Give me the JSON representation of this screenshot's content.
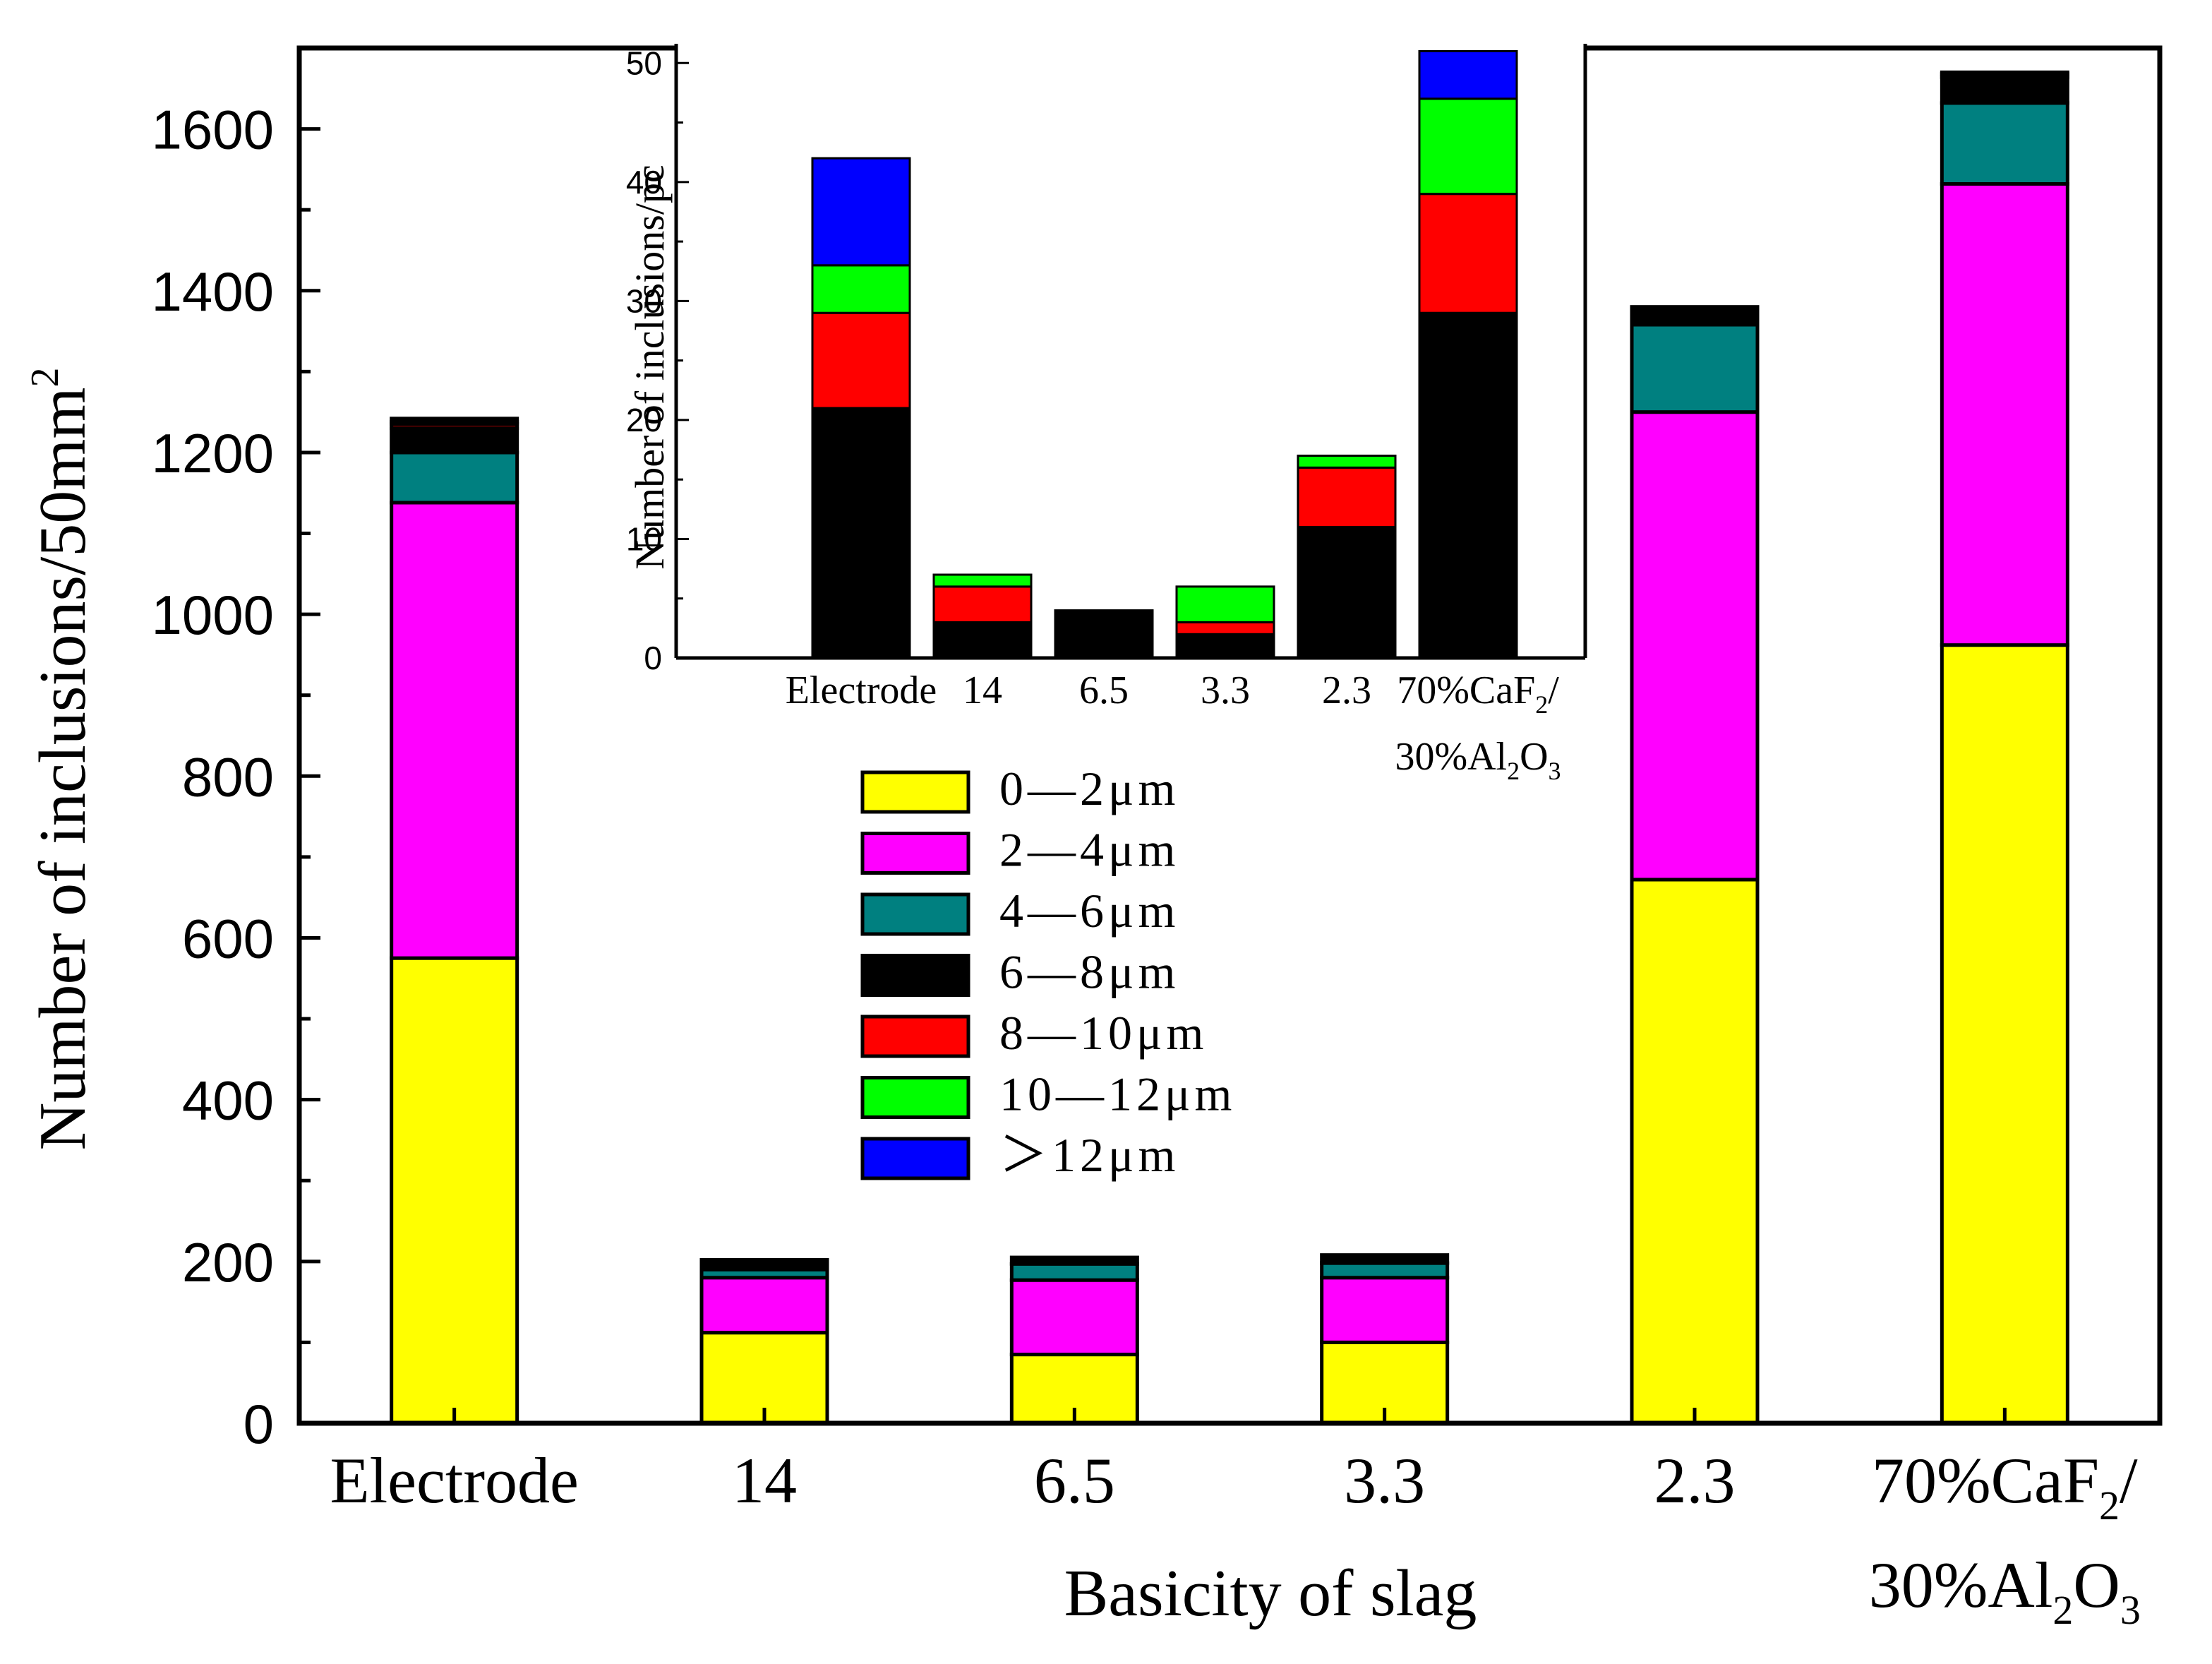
{
  "chart_data": [
    {
      "type": "bar",
      "stacked": true,
      "title": "",
      "xlabel": "Basicity of slag",
      "ylabel": "Number of inclusions/50mm",
      "ylabel_superscript": "2",
      "ylim": [
        0,
        1700
      ],
      "yticks": [
        "0",
        "200",
        "400",
        "600",
        "800",
        "1000",
        "1200",
        "1400",
        "1600"
      ],
      "categories": [
        {
          "label": "Electrode"
        },
        {
          "label": "14"
        },
        {
          "label": "6.5"
        },
        {
          "label": "3.3"
        },
        {
          "label": "2.3"
        },
        {
          "line1_a": "70%CaF",
          "line1_sub": "2",
          "line1_b": "/",
          "line2_a": "30%Al",
          "line2_sub1": "2",
          "line2_b": "O",
          "line2_sub2": "3"
        }
      ],
      "series": [
        {
          "name": "0—2μm",
          "color": "#ffff00",
          "values": [
            575,
            112,
            85,
            100,
            672,
            962
          ]
        },
        {
          "name": "2—4μm",
          "color": "#ff00ff",
          "values": [
            563,
            68,
            92,
            80,
            578,
            570
          ]
        },
        {
          "name": "4—6μm",
          "color": "#008080",
          "values": [
            62,
            10,
            20,
            18,
            108,
            100
          ]
        },
        {
          "name": "6—8μm",
          "color": "#000000",
          "values": [
            30,
            12,
            8,
            10,
            22,
            32
          ]
        },
        {
          "name": "8—10μm",
          "color": "#ff0000",
          "values": [
            5,
            0,
            0,
            0,
            0,
            4
          ]
        },
        {
          "name": "10—12μm",
          "color": "#00ff00",
          "values": [
            3,
            0,
            0,
            0,
            0,
            2
          ]
        },
        {
          "name": "＞12μm",
          "color": "#0000ff",
          "values": [
            4,
            0,
            0,
            0,
            0,
            0
          ]
        }
      ]
    },
    {
      "type": "bar",
      "stacked": true,
      "inset": true,
      "ylabel": "Number of inclusions/pc",
      "ylim": [
        0,
        51.5
      ],
      "yticks": [
        "0",
        "10",
        "20",
        "30",
        "40",
        "50"
      ],
      "categories": [
        {
          "label": "Electrode"
        },
        {
          "label": "14"
        },
        {
          "label": "6.5"
        },
        {
          "label": "3.3"
        },
        {
          "label": "2.3"
        },
        {
          "line1_a": "70%CaF",
          "line1_sub": "2",
          "line1_b": "/",
          "line2_a": "30%Al",
          "line2_sub1": "2",
          "line2_b": "O",
          "line2_sub2": "3"
        }
      ],
      "series": [
        {
          "name": "6—8μm",
          "color": "#000000",
          "values": [
            21,
            3,
            4,
            2,
            11,
            29
          ]
        },
        {
          "name": "8—10μm",
          "color": "#ff0000",
          "values": [
            8,
            3,
            0,
            1,
            5,
            10
          ]
        },
        {
          "name": "10—12μm",
          "color": "#00ff00",
          "values": [
            4,
            1,
            0,
            3,
            1,
            8
          ]
        },
        {
          "name": "＞12μm",
          "color": "#0000ff",
          "values": [
            9,
            0,
            0,
            0,
            0,
            4
          ]
        }
      ]
    }
  ]
}
